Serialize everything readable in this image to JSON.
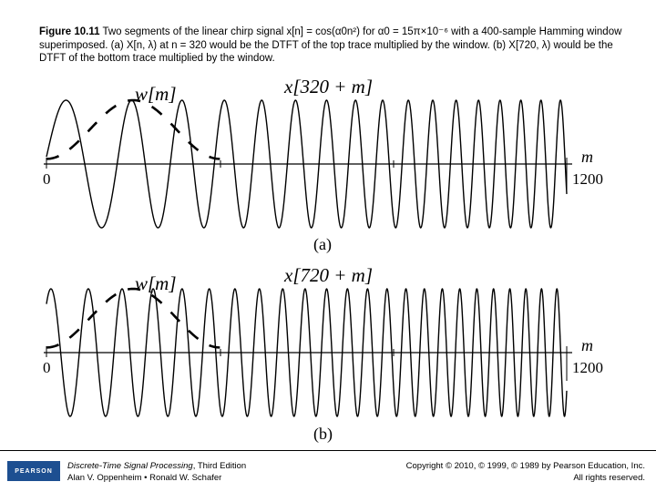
{
  "caption": {
    "label": "Figure 10.11",
    "text": "  Two segments of the linear chirp signal x[n] = cos(α0n²) for α0 = 15π×10⁻⁶ with a 400-sample Hamming window superimposed. (a) X[n, λ) at n = 320 would be the DTFT of the top trace multiplied by the window. (b) X[720, λ) would be the DTFT of the bottom trace multiplied by the window."
  },
  "panel_a": {
    "signal_label": "x[320 + m]",
    "window_label": "w[m]",
    "axis_var": "m",
    "tick_start": "0",
    "tick_end": "1200",
    "panel_label": "(a)"
  },
  "panel_b": {
    "signal_label": "x[720 + m]",
    "window_label": "w[m]",
    "axis_var": "m",
    "tick_start": "0",
    "tick_end": "1200",
    "panel_label": "(b)"
  },
  "chart_data": [
    {
      "type": "line",
      "series": [
        {
          "function": "cos(alpha0*(320+m)^2)",
          "alpha0": 4.71239e-05,
          "m_range": [
            0,
            1200
          ]
        },
        {
          "function": "hamming window, 400 samples",
          "m_range": [
            0,
            400
          ]
        }
      ],
      "xlim": [
        0,
        1200
      ],
      "ylim": [
        -1,
        1
      ]
    },
    {
      "type": "line",
      "series": [
        {
          "function": "cos(alpha0*(720+m)^2)",
          "alpha0": 4.71239e-05,
          "m_range": [
            0,
            1200
          ]
        },
        {
          "function": "hamming window, 400 samples",
          "m_range": [
            0,
            400
          ]
        }
      ],
      "xlim": [
        0,
        1200
      ],
      "ylim": [
        -1,
        1
      ]
    }
  ],
  "footer": {
    "logo_text": "PEARSON",
    "book_title": "Discrete-Time Signal Processing",
    "book_edition": ", Third Edition",
    "authors": "Alan V. Oppenheim • Ronald W. Schafer",
    "copyright": "Copyright © 2010, © 1999, © 1989 by Pearson Education, Inc.",
    "rights": "All rights reserved."
  }
}
